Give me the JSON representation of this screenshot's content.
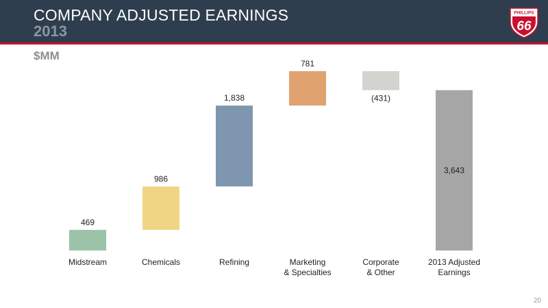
{
  "header": {
    "title": "COMPANY ADJUSTED EARNINGS",
    "subtitle": "2013",
    "brand_color": "#2e3e4e",
    "rule_color": "#c8102e"
  },
  "logo": {
    "icon": "phillips-66-shield-icon",
    "top_text": "PHILLIPS",
    "number": "66"
  },
  "page_number": "20",
  "chart_data": {
    "type": "bar",
    "subtype": "waterfall",
    "unit_label": "$MM",
    "categories": [
      [
        "Midstream"
      ],
      [
        "Chemicals"
      ],
      [
        "Refining"
      ],
      [
        "Marketing",
        "& Specialties"
      ],
      [
        "Corporate",
        "& Other"
      ],
      [
        "2013 Adjusted",
        "Earnings"
      ]
    ],
    "values": [
      469,
      986,
      1838,
      781,
      -431,
      3643
    ],
    "value_labels": [
      "469",
      "986",
      "1,838",
      "781",
      "(431)",
      "3,643"
    ],
    "is_total": [
      false,
      false,
      false,
      false,
      false,
      true
    ],
    "colors": [
      "#9cc3a9",
      "#f0d584",
      "#7f97ae",
      "#e0a26e",
      "#d3d3d0",
      "#a6a6a6"
    ],
    "ylim": [
      0,
      4074
    ],
    "grid": false,
    "legend": "none"
  }
}
